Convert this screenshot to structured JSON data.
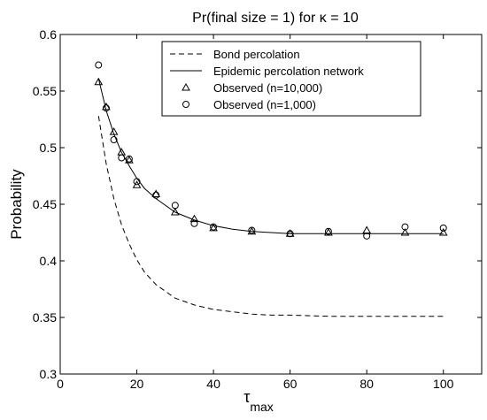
{
  "chart_data": {
    "type": "line",
    "title": "Pr(final size = 1) for κ = 10",
    "xlabel": "τ",
    "xlabel_subscript": "max",
    "ylabel": "Probability",
    "xlim": [
      0,
      110
    ],
    "ylim": [
      0.3,
      0.6
    ],
    "xticks": [
      0,
      20,
      40,
      60,
      80,
      100
    ],
    "yticks": [
      0.3,
      0.35,
      0.4,
      0.45,
      0.5,
      0.55,
      0.6
    ],
    "ytick_labels": [
      "0.3",
      "0.35",
      "0.4",
      "0.45",
      "0.5",
      "0.55",
      "0.6"
    ],
    "grid": false,
    "legend_position": "top-right",
    "series": [
      {
        "name": "Bond percolation",
        "style": "dashed-line",
        "color": "#000000",
        "x": [
          10,
          12,
          14,
          16,
          18,
          20,
          22,
          25,
          30,
          35,
          40,
          45,
          50,
          55,
          60,
          70,
          80,
          90,
          100
        ],
        "y": [
          0.528,
          0.486,
          0.455,
          0.432,
          0.415,
          0.401,
          0.39,
          0.379,
          0.367,
          0.361,
          0.357,
          0.355,
          0.353,
          0.352,
          0.352,
          0.351,
          0.351,
          0.351,
          0.351
        ]
      },
      {
        "name": "Epidemic percolation network",
        "style": "solid-line",
        "color": "#000000",
        "x": [
          10,
          12,
          14,
          16,
          18,
          20,
          22,
          25,
          30,
          35,
          40,
          45,
          50,
          55,
          60,
          70,
          80,
          90,
          100
        ],
        "y": [
          0.561,
          0.533,
          0.512,
          0.496,
          0.484,
          0.473,
          0.464,
          0.455,
          0.443,
          0.436,
          0.431,
          0.428,
          0.426,
          0.425,
          0.424,
          0.424,
          0.424,
          0.424,
          0.424
        ]
      },
      {
        "name": "Observed (n=10,000)",
        "style": "triangle-marker",
        "color": "#000000",
        "x": [
          10,
          12,
          14,
          16,
          18,
          20,
          25,
          30,
          35,
          40,
          50,
          60,
          70,
          80,
          90,
          100
        ],
        "y": [
          0.558,
          0.536,
          0.514,
          0.496,
          0.489,
          0.467,
          0.459,
          0.443,
          0.437,
          0.429,
          0.426,
          0.424,
          0.425,
          0.427,
          0.425,
          0.425
        ]
      },
      {
        "name": "Observed (n=1,000)",
        "style": "circle-marker",
        "color": "#000000",
        "x": [
          10,
          12,
          14,
          16,
          18,
          20,
          25,
          30,
          35,
          40,
          50,
          60,
          70,
          80,
          90,
          100
        ],
        "y": [
          0.573,
          0.535,
          0.507,
          0.491,
          0.49,
          0.47,
          0.458,
          0.449,
          0.433,
          0.43,
          0.427,
          0.424,
          0.426,
          0.422,
          0.43,
          0.429
        ]
      }
    ]
  }
}
